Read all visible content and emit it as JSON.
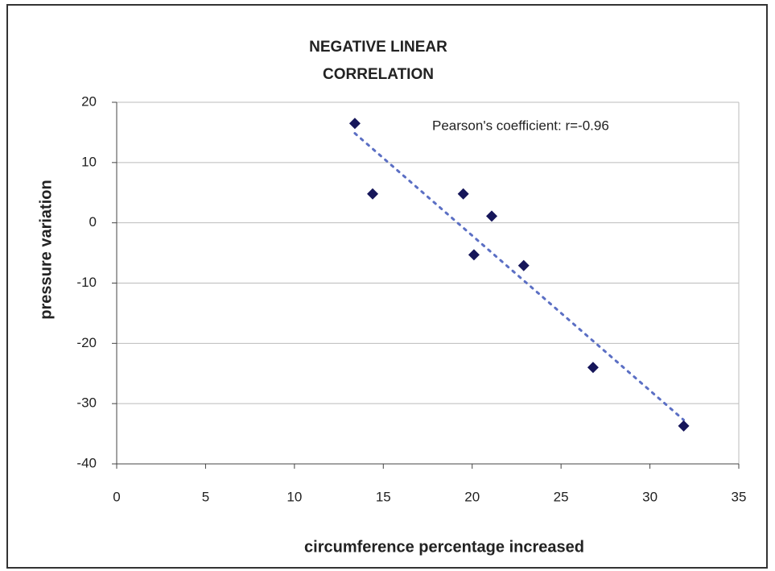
{
  "chart_data": {
    "type": "scatter",
    "title": "NEGATIVE LINEAR CORRELATION",
    "annotation": "Pearson's coefficient: r=-0.96",
    "x_label": "circumference percentage increased",
    "y_label": "pressure variation",
    "x": [
      13.4,
      14.4,
      19.5,
      21.1,
      20.1,
      22.9,
      26.8,
      31.9
    ],
    "values": [
      16.5,
      4.8,
      4.8,
      1.1,
      -5.3,
      -7.1,
      -24,
      -33.7
    ],
    "color": "#16165a",
    "trendline": true,
    "trendline_color": "#5b6fc4",
    "xlim": [
      0,
      35
    ],
    "xticks": [
      0,
      5,
      10,
      15,
      20,
      25,
      30,
      35
    ],
    "ylim": [
      -40,
      20
    ],
    "yticks": [
      -40,
      -30,
      -20,
      -10,
      0,
      10,
      20
    ],
    "grid": true
  }
}
